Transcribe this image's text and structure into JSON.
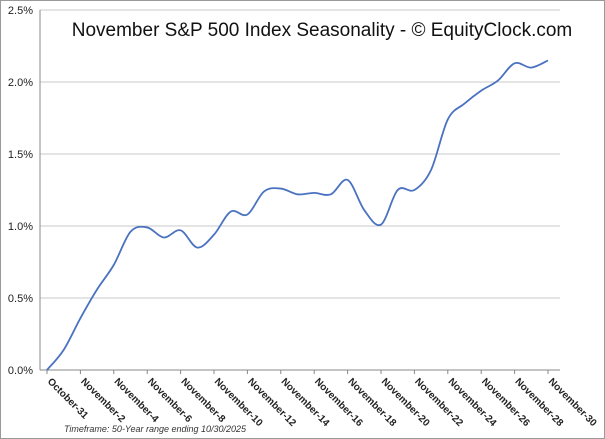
{
  "chart_data": {
    "type": "line",
    "title": "November S&P 500 Index Seasonality - © EquityClock.com",
    "footnote": "Timeframe: 50-Year range ending 10/30/2025",
    "categories": [
      "October-31",
      null,
      "November-2",
      null,
      "November-4",
      null,
      "November-6",
      null,
      "November-8",
      null,
      "November-10",
      null,
      "November-12",
      null,
      "November-14",
      null,
      "November-16",
      null,
      "November-18",
      null,
      "November-20",
      null,
      "November-22",
      null,
      "November-24",
      null,
      "November-26",
      null,
      "November-28",
      null,
      "November-30"
    ],
    "values": [
      0.0,
      0.14,
      0.36,
      0.56,
      0.73,
      0.96,
      0.99,
      0.92,
      0.97,
      0.85,
      0.94,
      1.1,
      1.08,
      1.24,
      1.26,
      1.22,
      1.23,
      1.22,
      1.32,
      1.11,
      1.01,
      1.25,
      1.25,
      1.39,
      1.74,
      1.85,
      1.94,
      2.01,
      2.13,
      2.1,
      2.15
    ],
    "color": "#4a72c0",
    "ylim": [
      0,
      2.5
    ],
    "yticks": [
      {
        "value": 0,
        "label": "0.0%"
      },
      {
        "value": 0.5,
        "label": "0.5%"
      },
      {
        "value": 1.0,
        "label": "1.0%"
      },
      {
        "value": 1.5,
        "label": "1.5%"
      },
      {
        "value": 2.0,
        "label": "2.0%"
      },
      {
        "value": 2.5,
        "label": "2.5%"
      }
    ],
    "grid": true
  }
}
